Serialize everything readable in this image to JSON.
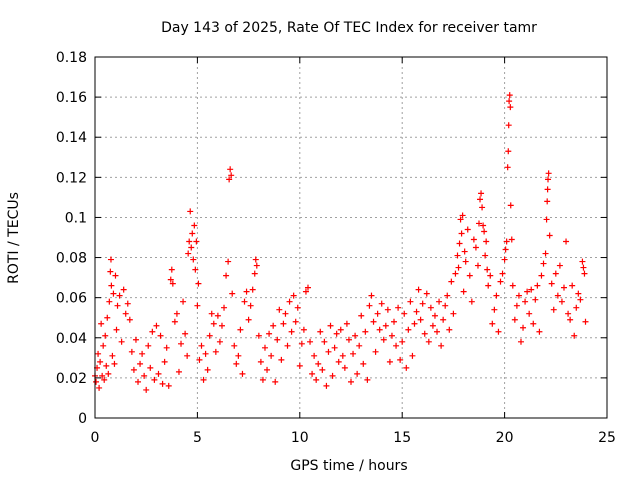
{
  "chart_data": {
    "type": "scatter",
    "title": "Day 143 of 2025, Rate Of TEC Index for receiver tamr",
    "xlabel": "GPS time / hours",
    "ylabel": "ROTI / TECUs",
    "xlim": [
      0,
      25
    ],
    "ylim": [
      0,
      0.18
    ],
    "x_ticks": [
      0,
      5,
      10,
      15,
      20,
      25
    ],
    "x_tick_labels": [
      "0",
      "5",
      "10",
      "15",
      "20",
      "25"
    ],
    "y_ticks": [
      0,
      0.02,
      0.04,
      0.06,
      0.08,
      0.1,
      0.12,
      0.14,
      0.16,
      0.18
    ],
    "y_tick_labels": [
      "0",
      "0.02",
      "0.04",
      "0.06",
      "0.08",
      "0.1",
      "0.12",
      "0.14",
      "0.16",
      "0.18"
    ],
    "grid": true,
    "marker": "+",
    "color": "#ff0000",
    "series": [
      {
        "name": "ROTI",
        "points": [
          [
            0.0,
            0.021
          ],
          [
            0.05,
            0.018
          ],
          [
            0.1,
            0.025
          ],
          [
            0.15,
            0.032
          ],
          [
            0.2,
            0.015
          ],
          [
            0.25,
            0.028
          ],
          [
            0.3,
            0.047
          ],
          [
            0.35,
            0.021
          ],
          [
            0.4,
            0.036
          ],
          [
            0.45,
            0.019
          ],
          [
            0.5,
            0.041
          ],
          [
            0.55,
            0.026
          ],
          [
            0.6,
            0.05
          ],
          [
            0.65,
            0.022
          ],
          [
            0.7,
            0.058
          ],
          [
            0.75,
            0.073
          ],
          [
            0.78,
            0.079
          ],
          [
            0.8,
            0.066
          ],
          [
            0.85,
            0.031
          ],
          [
            0.9,
            0.062
          ],
          [
            0.95,
            0.027
          ],
          [
            1.0,
            0.071
          ],
          [
            1.05,
            0.044
          ],
          [
            1.1,
            0.056
          ],
          [
            1.2,
            0.061
          ],
          [
            1.3,
            0.038
          ],
          [
            1.4,
            0.064
          ],
          [
            1.5,
            0.052
          ],
          [
            1.6,
            0.057
          ],
          [
            1.7,
            0.049
          ],
          [
            1.8,
            0.033
          ],
          [
            1.9,
            0.024
          ],
          [
            2.0,
            0.039
          ],
          [
            2.1,
            0.018
          ],
          [
            2.2,
            0.027
          ],
          [
            2.3,
            0.032
          ],
          [
            2.4,
            0.021
          ],
          [
            2.5,
            0.014
          ],
          [
            2.6,
            0.036
          ],
          [
            2.7,
            0.025
          ],
          [
            2.8,
            0.043
          ],
          [
            2.9,
            0.019
          ],
          [
            3.0,
            0.046
          ],
          [
            3.1,
            0.022
          ],
          [
            3.2,
            0.041
          ],
          [
            3.3,
            0.017
          ],
          [
            3.4,
            0.028
          ],
          [
            3.5,
            0.035
          ],
          [
            3.6,
            0.016
          ],
          [
            3.7,
            0.069
          ],
          [
            3.75,
            0.074
          ],
          [
            3.8,
            0.067
          ],
          [
            3.9,
            0.048
          ],
          [
            4.0,
            0.052
          ],
          [
            4.1,
            0.023
          ],
          [
            4.2,
            0.037
          ],
          [
            4.3,
            0.058
          ],
          [
            4.4,
            0.042
          ],
          [
            4.5,
            0.031
          ],
          [
            4.55,
            0.082
          ],
          [
            4.6,
            0.088
          ],
          [
            4.65,
            0.103
          ],
          [
            4.7,
            0.085
          ],
          [
            4.75,
            0.092
          ],
          [
            4.8,
            0.079
          ],
          [
            4.85,
            0.096
          ],
          [
            4.9,
            0.074
          ],
          [
            4.95,
            0.088
          ],
          [
            5.0,
            0.056
          ],
          [
            5.05,
            0.067
          ],
          [
            5.1,
            0.029
          ],
          [
            5.2,
            0.036
          ],
          [
            5.3,
            0.019
          ],
          [
            5.4,
            0.032
          ],
          [
            5.5,
            0.024
          ],
          [
            5.6,
            0.041
          ],
          [
            5.7,
            0.052
          ],
          [
            5.8,
            0.047
          ],
          [
            5.9,
            0.033
          ],
          [
            6.0,
            0.051
          ],
          [
            6.1,
            0.038
          ],
          [
            6.2,
            0.046
          ],
          [
            6.3,
            0.055
          ],
          [
            6.4,
            0.071
          ],
          [
            6.5,
            0.078
          ],
          [
            6.55,
            0.119
          ],
          [
            6.6,
            0.124
          ],
          [
            6.65,
            0.121
          ],
          [
            6.7,
            0.062
          ],
          [
            6.8,
            0.036
          ],
          [
            6.9,
            0.027
          ],
          [
            7.0,
            0.031
          ],
          [
            7.1,
            0.044
          ],
          [
            7.2,
            0.022
          ],
          [
            7.3,
            0.058
          ],
          [
            7.4,
            0.063
          ],
          [
            7.5,
            0.049
          ],
          [
            7.6,
            0.056
          ],
          [
            7.7,
            0.064
          ],
          [
            7.8,
            0.072
          ],
          [
            7.85,
            0.079
          ],
          [
            7.9,
            0.076
          ],
          [
            8.0,
            0.041
          ],
          [
            8.1,
            0.028
          ],
          [
            8.2,
            0.019
          ],
          [
            8.3,
            0.035
          ],
          [
            8.4,
            0.024
          ],
          [
            8.5,
            0.042
          ],
          [
            8.6,
            0.031
          ],
          [
            8.7,
            0.046
          ],
          [
            8.8,
            0.018
          ],
          [
            8.9,
            0.039
          ],
          [
            9.0,
            0.054
          ],
          [
            9.1,
            0.029
          ],
          [
            9.2,
            0.047
          ],
          [
            9.3,
            0.052
          ],
          [
            9.4,
            0.036
          ],
          [
            9.5,
            0.058
          ],
          [
            9.6,
            0.043
          ],
          [
            9.7,
            0.061
          ],
          [
            9.8,
            0.048
          ],
          [
            9.9,
            0.055
          ],
          [
            10.0,
            0.026
          ],
          [
            10.1,
            0.037
          ],
          [
            10.2,
            0.044
          ],
          [
            10.3,
            0.063
          ],
          [
            10.4,
            0.065
          ],
          [
            10.5,
            0.038
          ],
          [
            10.6,
            0.022
          ],
          [
            10.7,
            0.031
          ],
          [
            10.8,
            0.019
          ],
          [
            10.9,
            0.027
          ],
          [
            11.0,
            0.043
          ],
          [
            11.1,
            0.024
          ],
          [
            11.2,
            0.038
          ],
          [
            11.3,
            0.016
          ],
          [
            11.4,
            0.033
          ],
          [
            11.5,
            0.046
          ],
          [
            11.6,
            0.021
          ],
          [
            11.7,
            0.035
          ],
          [
            11.8,
            0.042
          ],
          [
            11.9,
            0.028
          ],
          [
            12.0,
            0.044
          ],
          [
            12.1,
            0.031
          ],
          [
            12.2,
            0.025
          ],
          [
            12.3,
            0.047
          ],
          [
            12.4,
            0.039
          ],
          [
            12.5,
            0.018
          ],
          [
            12.6,
            0.032
          ],
          [
            12.7,
            0.041
          ],
          [
            12.8,
            0.022
          ],
          [
            12.9,
            0.036
          ],
          [
            13.0,
            0.051
          ],
          [
            13.1,
            0.027
          ],
          [
            13.2,
            0.043
          ],
          [
            13.3,
            0.019
          ],
          [
            13.4,
            0.056
          ],
          [
            13.5,
            0.061
          ],
          [
            13.6,
            0.048
          ],
          [
            13.7,
            0.033
          ],
          [
            13.8,
            0.052
          ],
          [
            13.9,
            0.044
          ],
          [
            14.0,
            0.057
          ],
          [
            14.1,
            0.039
          ],
          [
            14.2,
            0.046
          ],
          [
            14.3,
            0.054
          ],
          [
            14.4,
            0.028
          ],
          [
            14.5,
            0.041
          ],
          [
            14.6,
            0.048
          ],
          [
            14.7,
            0.036
          ],
          [
            14.8,
            0.055
          ],
          [
            14.9,
            0.029
          ],
          [
            15.0,
            0.038
          ],
          [
            15.1,
            0.052
          ],
          [
            15.2,
            0.025
          ],
          [
            15.3,
            0.044
          ],
          [
            15.4,
            0.058
          ],
          [
            15.5,
            0.031
          ],
          [
            15.6,
            0.047
          ],
          [
            15.7,
            0.053
          ],
          [
            15.8,
            0.064
          ],
          [
            15.9,
            0.049
          ],
          [
            16.0,
            0.057
          ],
          [
            16.1,
            0.042
          ],
          [
            16.2,
            0.062
          ],
          [
            16.3,
            0.038
          ],
          [
            16.4,
            0.055
          ],
          [
            16.5,
            0.046
          ],
          [
            16.6,
            0.051
          ],
          [
            16.7,
            0.043
          ],
          [
            16.8,
            0.058
          ],
          [
            16.9,
            0.036
          ],
          [
            17.0,
            0.049
          ],
          [
            17.1,
            0.056
          ],
          [
            17.2,
            0.061
          ],
          [
            17.3,
            0.044
          ],
          [
            17.4,
            0.068
          ],
          [
            17.5,
            0.052
          ],
          [
            17.6,
            0.072
          ],
          [
            17.7,
            0.081
          ],
          [
            17.75,
            0.075
          ],
          [
            17.8,
            0.087
          ],
          [
            17.85,
            0.099
          ],
          [
            17.9,
            0.092
          ],
          [
            17.95,
            0.101
          ],
          [
            18.0,
            0.063
          ],
          [
            18.05,
            0.083
          ],
          [
            18.1,
            0.078
          ],
          [
            18.2,
            0.094
          ],
          [
            18.3,
            0.071
          ],
          [
            18.4,
            0.058
          ],
          [
            18.5,
            0.089
          ],
          [
            18.6,
            0.085
          ],
          [
            18.7,
            0.076
          ],
          [
            18.75,
            0.097
          ],
          [
            18.8,
            0.109
          ],
          [
            18.85,
            0.112
          ],
          [
            18.9,
            0.105
          ],
          [
            18.95,
            0.096
          ],
          [
            19.0,
            0.093
          ],
          [
            19.05,
            0.081
          ],
          [
            19.1,
            0.088
          ],
          [
            19.15,
            0.074
          ],
          [
            19.2,
            0.066
          ],
          [
            19.3,
            0.071
          ],
          [
            19.4,
            0.047
          ],
          [
            19.5,
            0.054
          ],
          [
            19.6,
            0.061
          ],
          [
            19.7,
            0.043
          ],
          [
            19.8,
            0.068
          ],
          [
            19.9,
            0.072
          ],
          [
            20.0,
            0.079
          ],
          [
            20.05,
            0.084
          ],
          [
            20.1,
            0.088
          ],
          [
            20.15,
            0.125
          ],
          [
            20.18,
            0.133
          ],
          [
            20.2,
            0.146
          ],
          [
            20.22,
            0.158
          ],
          [
            20.25,
            0.161
          ],
          [
            20.28,
            0.155
          ],
          [
            20.3,
            0.106
          ],
          [
            20.35,
            0.089
          ],
          [
            20.4,
            0.066
          ],
          [
            20.5,
            0.049
          ],
          [
            20.6,
            0.056
          ],
          [
            20.7,
            0.061
          ],
          [
            20.8,
            0.038
          ],
          [
            20.9,
            0.045
          ],
          [
            21.0,
            0.058
          ],
          [
            21.1,
            0.063
          ],
          [
            21.2,
            0.052
          ],
          [
            21.3,
            0.064
          ],
          [
            21.4,
            0.047
          ],
          [
            21.5,
            0.059
          ],
          [
            21.6,
            0.066
          ],
          [
            21.7,
            0.043
          ],
          [
            21.8,
            0.071
          ],
          [
            21.9,
            0.077
          ],
          [
            22.0,
            0.082
          ],
          [
            22.05,
            0.099
          ],
          [
            22.08,
            0.108
          ],
          [
            22.1,
            0.114
          ],
          [
            22.12,
            0.119
          ],
          [
            22.15,
            0.122
          ],
          [
            22.2,
            0.091
          ],
          [
            22.3,
            0.067
          ],
          [
            22.4,
            0.054
          ],
          [
            22.5,
            0.072
          ],
          [
            22.6,
            0.061
          ],
          [
            22.7,
            0.076
          ],
          [
            22.8,
            0.058
          ],
          [
            22.9,
            0.065
          ],
          [
            23.0,
            0.088
          ],
          [
            23.1,
            0.052
          ],
          [
            23.2,
            0.049
          ],
          [
            23.3,
            0.066
          ],
          [
            23.4,
            0.041
          ],
          [
            23.5,
            0.055
          ],
          [
            23.6,
            0.062
          ],
          [
            23.7,
            0.059
          ],
          [
            23.8,
            0.078
          ],
          [
            23.85,
            0.075
          ],
          [
            23.9,
            0.072
          ],
          [
            23.95,
            0.048
          ]
        ]
      }
    ]
  }
}
